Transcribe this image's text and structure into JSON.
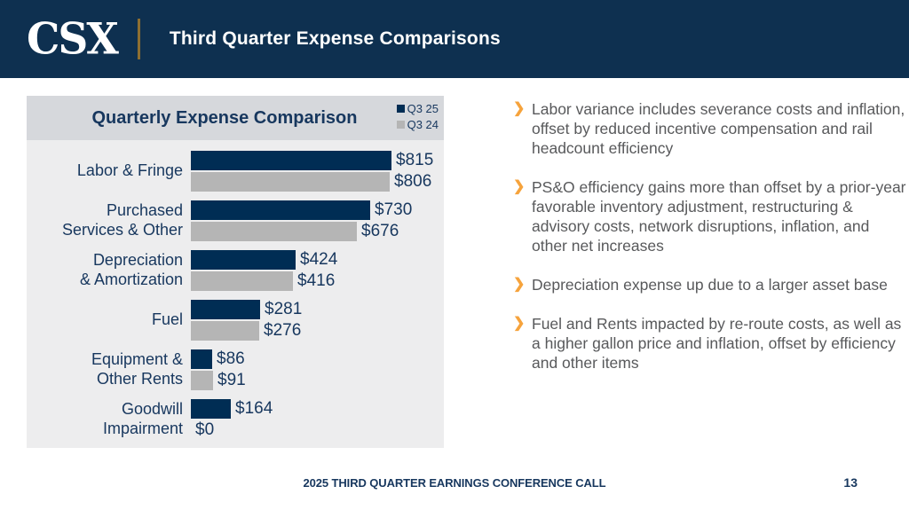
{
  "header": {
    "logo": "CSX",
    "title": "Third Quarter Expense Comparisons"
  },
  "chart": {
    "title": "Quarterly Expense Comparison"
  },
  "chart_data": {
    "type": "bar",
    "orientation": "horizontal",
    "title": "Quarterly Expense Comparison",
    "value_prefix": "$",
    "units": "millions USD",
    "xlim": [
      0,
      900
    ],
    "grid": false,
    "legend_position": "top-right",
    "categories": [
      "Labor & Fringe",
      "Purchased\nServices & Other",
      "Depreciation\n& Amortization",
      "Fuel",
      "Equipment &\nOther Rents",
      "Goodwill\nImpairment"
    ],
    "series": [
      {
        "name": "Q3 25",
        "color": "#002D54",
        "values": [
          815,
          730,
          424,
          281,
          86,
          164
        ]
      },
      {
        "name": "Q3 24",
        "color": "#B5B5B5",
        "values": [
          806,
          676,
          416,
          276,
          91,
          0
        ]
      }
    ]
  },
  "bullets": [
    "Labor variance includes severance costs and inflation, offset by reduced incentive compensation and rail headcount efficiency",
    "PS&O efficiency gains more than offset by a prior-year favorable inventory adjustment, restructuring & advisory costs, network disruptions, inflation, and other net increases",
    "Depreciation expense up due to a larger asset base",
    "Fuel and Rents impacted by re-route costs, as well as a higher gallon price and inflation, offset by efficiency and other items"
  ],
  "footer": {
    "text": "2025 THIRD QUARTER EARNINGS CONFERENCE CALL",
    "page": "13"
  },
  "colors": {
    "header_navy": "#0E3050",
    "gold_divider": "#8E6F32",
    "bar_navy": "#002D54",
    "bar_grey": "#B5B5B5",
    "text_navy": "#17375E",
    "bullet_grey": "#58595B",
    "orange": "#F6A33C",
    "panel_bg": "#EDEDEE",
    "panel_header_bg": "#D6D8DC"
  }
}
